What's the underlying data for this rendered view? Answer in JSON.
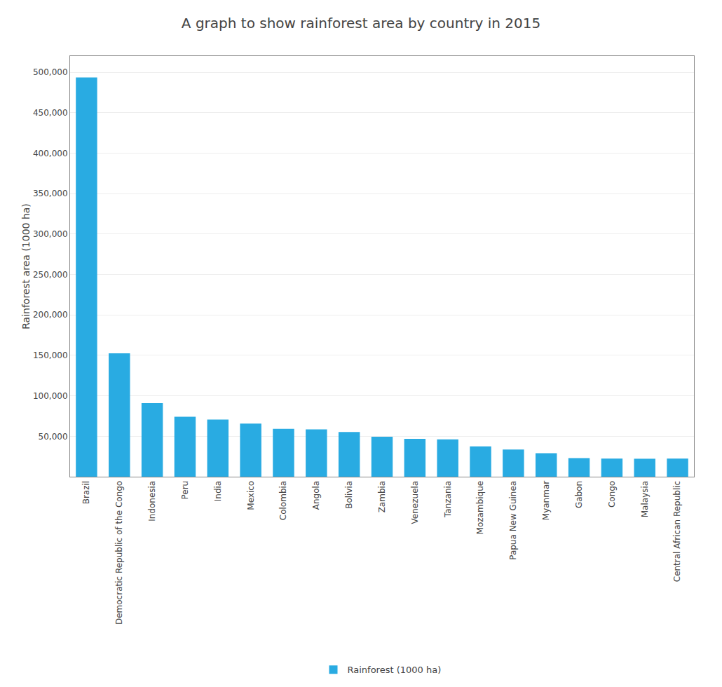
{
  "chart_data": {
    "type": "bar",
    "title": "A graph to show rainforest area by country in 2015",
    "ylabel": "Rainforest area (1000 ha)",
    "categories": [
      "Brazil",
      "Democratic Republic of the Congo",
      "Indonesia",
      "Peru",
      "India",
      "Mexico",
      "Colombia",
      "Angola",
      "Bolivia",
      "Zambia",
      "Venezuela",
      "Tanzania",
      "Mozambique",
      "Papua New Guinea",
      "Myanmar",
      "Gabon",
      "Congo",
      "Malaysia",
      "Central African Republic"
    ],
    "series": [
      {
        "name": "Rainforest (1000 ha)",
        "color": "#29ABE2",
        "values": [
          493538,
          152578,
          91010,
          74004,
          70682,
          65602,
          59142,
          58480,
          55185,
          49468,
          46720,
          46204,
          37523,
          33610,
          29041,
          23000,
          22411,
          22195,
          22411
        ]
      }
    ],
    "ylim": [
      0,
      520000
    ],
    "yticks": [
      {
        "value": 50000,
        "label": "50,000"
      },
      {
        "value": 100000,
        "label": "100,000"
      },
      {
        "value": 150000,
        "label": "150,000"
      },
      {
        "value": 200000,
        "label": "200,000"
      },
      {
        "value": 250000,
        "label": "250,000"
      },
      {
        "value": 300000,
        "label": "300,000"
      },
      {
        "value": 350000,
        "label": "350,000"
      },
      {
        "value": 400000,
        "label": "400,000"
      },
      {
        "value": 450000,
        "label": "450,000"
      },
      {
        "value": 500000,
        "label": "500,000"
      }
    ],
    "grid": true,
    "legend": "bottom"
  }
}
